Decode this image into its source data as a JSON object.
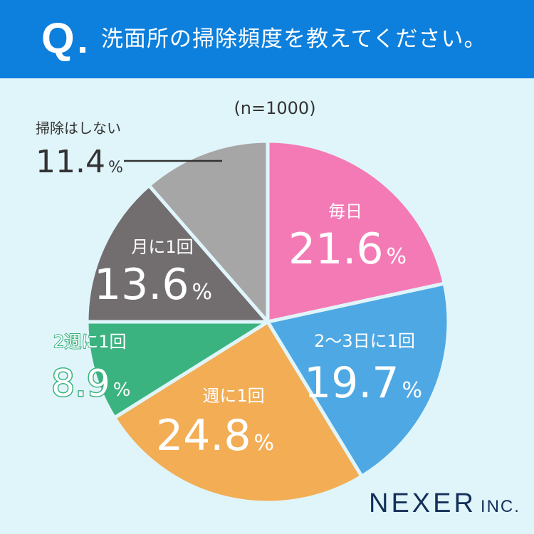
{
  "header": {
    "q_mark": "Q",
    "question": "洗面所の掃除頻度を教えてください。"
  },
  "sample_label": "(n=1000)",
  "colors": {
    "header_bg": "#0d7fdc",
    "background": "#e0f5fa",
    "daily": "#f47ab5",
    "every_2_3_days": "#4ea8e3",
    "weekly": "#f2ad55",
    "every_2_weeks": "#3bb380",
    "monthly": "#726e6f",
    "never": "#a6a6a6"
  },
  "logo": {
    "main": "NEXER",
    "suffix": "INC."
  },
  "chart_data": {
    "type": "pie",
    "title": "洗面所の掃除頻度を教えてください。",
    "subtitle": "(n=1000)",
    "unit": "%",
    "slices": [
      {
        "label": "毎日",
        "value": 21.6,
        "display": "21.6",
        "color": "#f47ab5"
      },
      {
        "label": "2〜3日に1回",
        "value": 19.7,
        "display": "19.7",
        "color": "#4ea8e3"
      },
      {
        "label": "週に1回",
        "value": 24.8,
        "display": "24.8",
        "color": "#f2ad55"
      },
      {
        "label": "2週に1回",
        "value": 8.9,
        "display": "8.9",
        "color": "#3bb380"
      },
      {
        "label": "月に1回",
        "value": 13.6,
        "display": "13.6",
        "color": "#726e6f"
      },
      {
        "label": "掃除はしない",
        "value": 11.4,
        "display": "11.4",
        "color": "#a6a6a6"
      }
    ]
  }
}
